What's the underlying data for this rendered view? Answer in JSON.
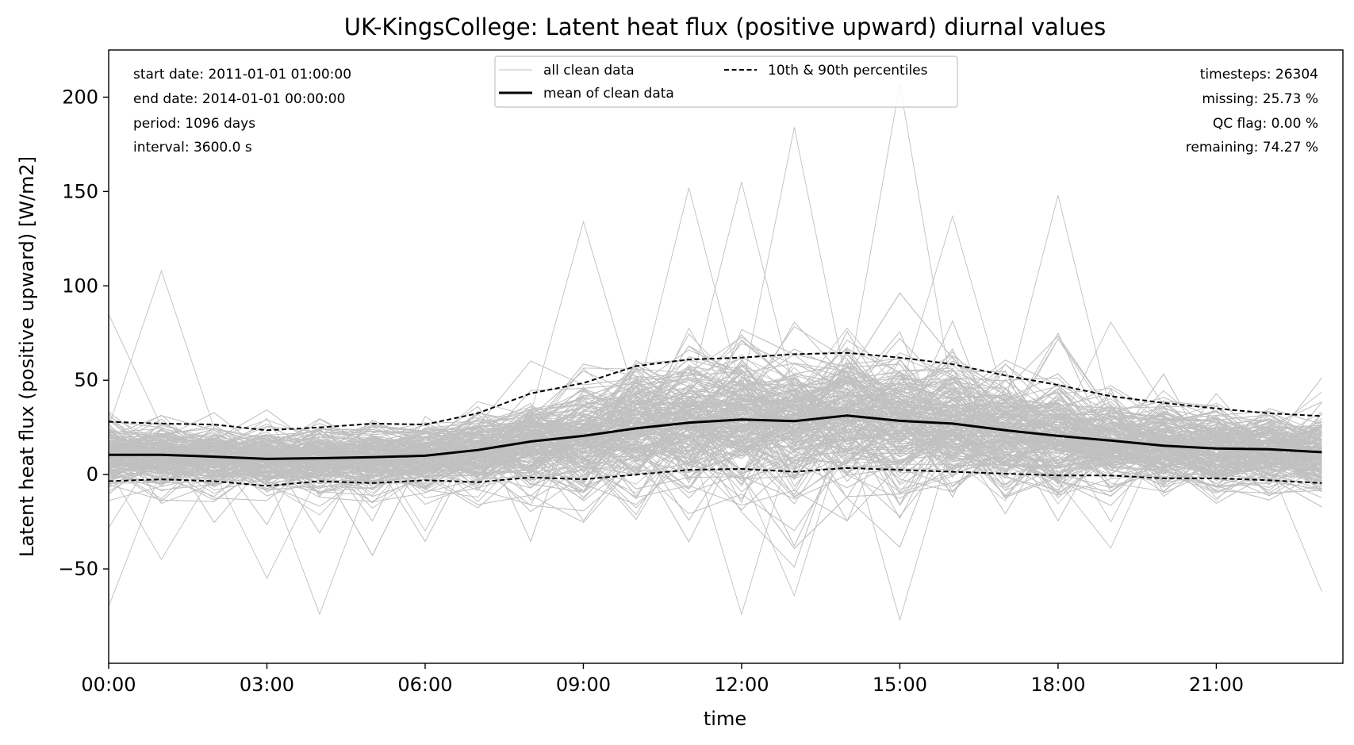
{
  "chart_data": {
    "type": "line",
    "title": "UK-KingsCollege: Latent heat flux (positive upward) diurnal values",
    "xlabel": "time",
    "ylabel": "Latent heat flux (positive upward) [W/m2]",
    "xlim": [
      0,
      23.4
    ],
    "ylim": [
      -100,
      225
    ],
    "x_ticks": [
      {
        "value": 0,
        "label": "00:00"
      },
      {
        "value": 3,
        "label": "03:00"
      },
      {
        "value": 6,
        "label": "06:00"
      },
      {
        "value": 9,
        "label": "09:00"
      },
      {
        "value": 12,
        "label": "12:00"
      },
      {
        "value": 15,
        "label": "15:00"
      },
      {
        "value": 18,
        "label": "18:00"
      },
      {
        "value": 21,
        "label": "21:00"
      }
    ],
    "y_ticks": [
      {
        "value": -50,
        "label": "−50"
      },
      {
        "value": 0,
        "label": "0"
      },
      {
        "value": 50,
        "label": "50"
      },
      {
        "value": 100,
        "label": "100"
      },
      {
        "value": 150,
        "label": "150"
      },
      {
        "value": 200,
        "label": "200"
      }
    ],
    "x": [
      0,
      1,
      2,
      3,
      4,
      5,
      6,
      7,
      8,
      9,
      10,
      11,
      12,
      13,
      14,
      15,
      16,
      17,
      18,
      19,
      20,
      21,
      22,
      23
    ],
    "series": [
      {
        "name": "mean of clean data",
        "style": "solid",
        "color": "#000000",
        "values": [
          10.5,
          10.5,
          9.5,
          8.3,
          8.7,
          9.2,
          10.0,
          13.0,
          17.5,
          20.5,
          24.5,
          27.5,
          29.2,
          28.3,
          31.3,
          28.5,
          27.0,
          23.5,
          20.5,
          18.0,
          15.3,
          13.8,
          13.4,
          11.9
        ]
      },
      {
        "name": "10th & 90th percentiles",
        "style": "dashed",
        "color": "#000000",
        "values": [
          28.0,
          27.0,
          26.5,
          23.5,
          25.0,
          27.0,
          26.5,
          32.5,
          43.0,
          48.5,
          57.5,
          61.0,
          62.0,
          63.8,
          64.5,
          62.0,
          58.5,
          52.5,
          47.5,
          41.5,
          38.0,
          35.0,
          32.5,
          31.0
        ]
      },
      {
        "name": "10th & 90th percentiles",
        "style": "dashed",
        "color": "#000000",
        "show_in_legend": false,
        "values": [
          -3.5,
          -2.5,
          -3.5,
          -6.0,
          -3.5,
          -4.5,
          -3.0,
          -4.0,
          -1.5,
          -2.5,
          0.0,
          2.5,
          3.0,
          1.5,
          3.5,
          2.5,
          1.5,
          0.5,
          -0.5,
          -0.5,
          -2.0,
          -2.0,
          -3.0,
          -4.5
        ]
      }
    ],
    "clean_data": {
      "name": "all clean data",
      "color": "#c0c0c0",
      "description_levels": "band of many daily traces, dense between percentiles",
      "peaks": [
        {
          "x": 15,
          "y": 207
        },
        {
          "x": 13,
          "y": 184
        },
        {
          "x": 12,
          "y": 155
        },
        {
          "x": 11,
          "y": 152
        },
        {
          "x": 16,
          "y": 137
        },
        {
          "x": 18,
          "y": 148
        },
        {
          "x": 1,
          "y": 108
        },
        {
          "x": 0,
          "y": 85
        },
        {
          "x": 9,
          "y": 134
        },
        {
          "x": 15,
          "y": -77
        },
        {
          "x": 12,
          "y": -74
        },
        {
          "x": 4,
          "y": -74
        },
        {
          "x": 0,
          "y": -70
        },
        {
          "x": 23,
          "y": -62
        },
        {
          "x": 3,
          "y": -55
        },
        {
          "x": 1,
          "y": -45
        }
      ]
    },
    "legend": {
      "placement": "top-center",
      "entries": [
        {
          "label": "all clean data",
          "style": "thin-gray"
        },
        {
          "label": "10th & 90th percentiles",
          "style": "dashed"
        },
        {
          "label": "mean of clean data",
          "style": "solid-thick"
        }
      ]
    },
    "info_left": [
      "start date: 2011-01-01 01:00:00",
      "end date: 2014-01-01 00:00:00",
      "period: 1096 days",
      "interval: 3600.0 s"
    ],
    "info_right": [
      "timesteps: 26304",
      "missing: 25.73 %",
      "QC flag: 0.00 %",
      "remaining: 74.27 %"
    ],
    "grid": false
  }
}
